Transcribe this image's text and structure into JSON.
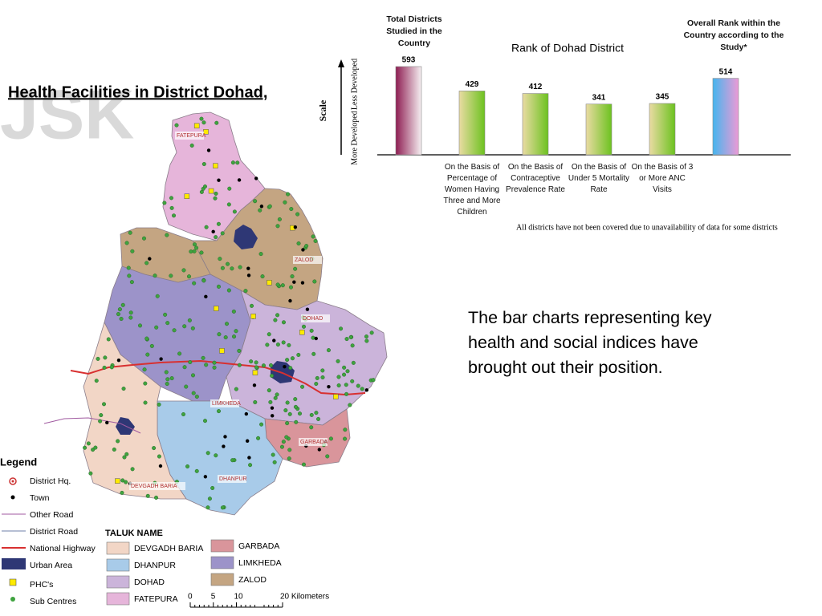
{
  "header": {
    "title": "Health Facilities in District Dohad,",
    "logo": "JSK"
  },
  "chart_data": {
    "type": "bar",
    "title": "Rank of Dohad District",
    "y_label": "Scale",
    "y_top_label": "Less Developed",
    "y_bottom_label": "More Developed",
    "categories": [
      "Total Districts Studied in the Country",
      "On the Basis of Percentage of Women Having Three and More Children",
      "On the Basis of Contraceptive Prevalence Rate",
      "On the Basis of Under 5 Mortality Rate",
      "On the Basis of 3 or More ANC Visits",
      "Overall Rank within the Country according to the Study*"
    ],
    "values": [
      593,
      429,
      412,
      341,
      345,
      514
    ],
    "colors": [
      [
        "#8e1d52",
        "#f6f0f2"
      ],
      [
        "#eadba3",
        "#6cc21f"
      ],
      [
        "#eadba3",
        "#6cc21f"
      ],
      [
        "#eadba3",
        "#6cc21f"
      ],
      [
        "#eadba3",
        "#6cc21f"
      ],
      [
        "#45b5ee",
        "#ec9ad6"
      ]
    ],
    "footnote": "All districts have not been covered due to unavailability of data for some districts"
  },
  "text": "The bar charts representing key health and social indices have brought out their position.",
  "map": {
    "labels": [
      "FATEPURA",
      "ZALOD",
      "DOHAD",
      "LIMKHEDA",
      "GARBADA",
      "DHANPUR",
      "DEVGADH BARIA"
    ],
    "legend": {
      "title": "Legend",
      "items": [
        "District Hq.",
        "Town",
        "Other Road",
        "District Road",
        "National Highway",
        "Urban Area",
        "PHC's",
        "Sub Centres"
      ]
    },
    "taluk_legend": {
      "title": "TALUK NAME",
      "taluks": [
        {
          "name": "DEVGADH BARIA",
          "color": "#f2d6c6"
        },
        {
          "name": "DHANPUR",
          "color": "#a8cbe9"
        },
        {
          "name": "DOHAD",
          "color": "#cbb4da"
        },
        {
          "name": "FATEPURA",
          "color": "#e6b5da"
        },
        {
          "name": "GARBADA",
          "color": "#d9959b"
        },
        {
          "name": "LIMKHEDA",
          "color": "#9c93c9"
        },
        {
          "name": "ZALOD",
          "color": "#c4a582"
        }
      ]
    },
    "scale_ticks": [
      0,
      5,
      10,
      {
        "value": 20,
        "label": "20 Kilometers"
      }
    ]
  }
}
